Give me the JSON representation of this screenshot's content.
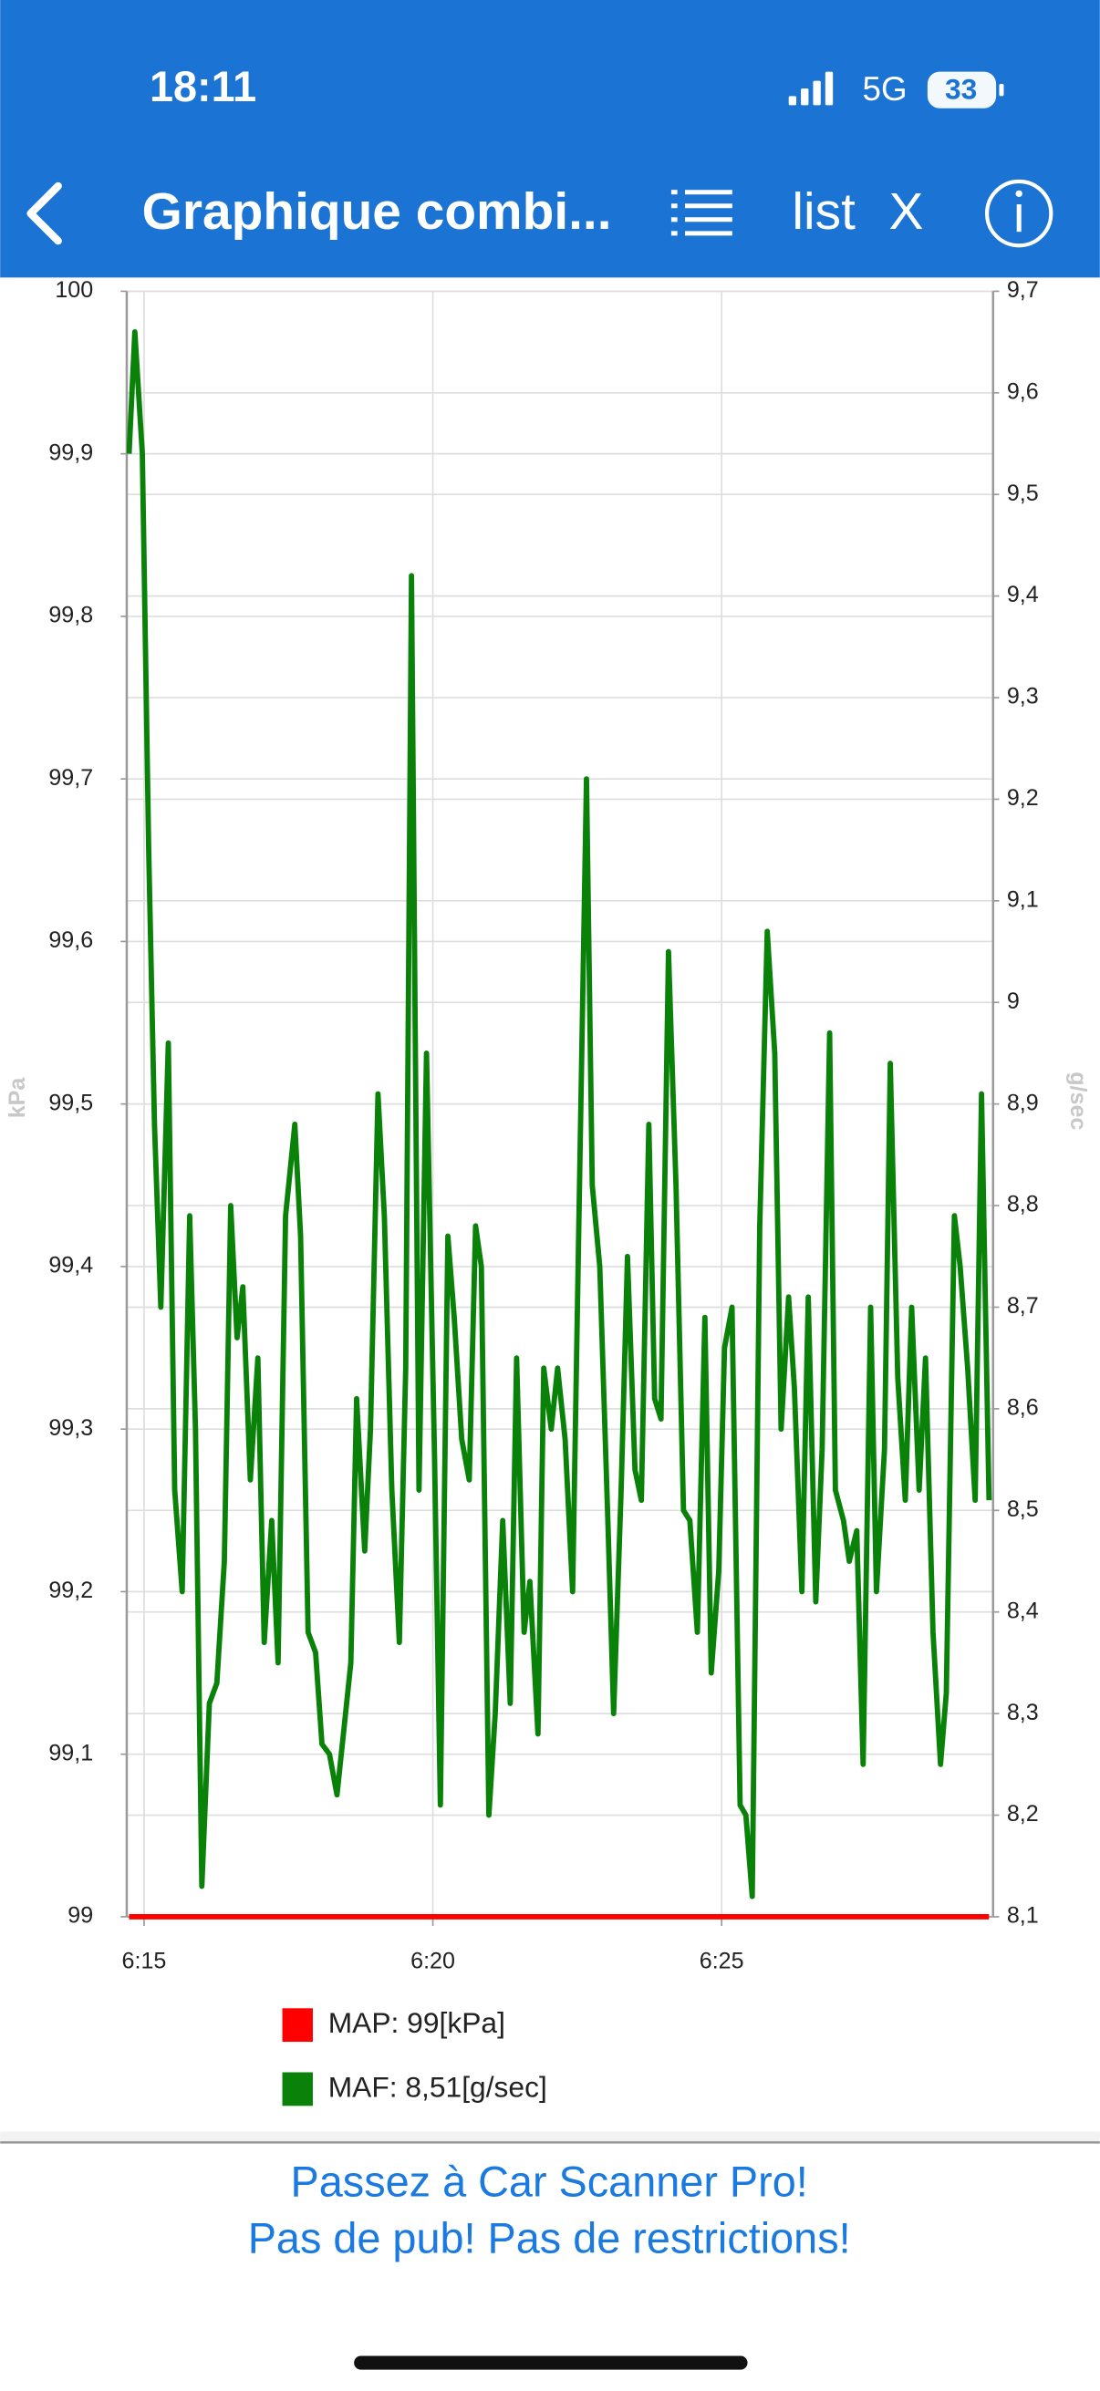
{
  "status_bar": {
    "time": "18:11",
    "network": "5G",
    "battery": "33"
  },
  "nav": {
    "title": "Graphique combi...",
    "list": "list",
    "close": "X"
  },
  "chart_data": {
    "type": "line",
    "ylabel": "kPa",
    "y2label": "g/sec",
    "grid": true,
    "xlim": [
      374.7,
      389.7
    ],
    "xticks": [
      {
        "value": 375,
        "label": "6:15"
      },
      {
        "value": 380,
        "label": "6:20"
      },
      {
        "value": 385,
        "label": "6:25"
      }
    ],
    "ylim": [
      99,
      100
    ],
    "yticks": [
      99,
      {
        "value": 99.1,
        "label": "99,1"
      },
      {
        "value": 99.2,
        "label": "99,2"
      },
      {
        "value": 99.3,
        "label": "99,3"
      },
      {
        "value": 99.4,
        "label": "99,4"
      },
      {
        "value": 99.5,
        "label": "99,5"
      },
      {
        "value": 99.6,
        "label": "99,6"
      },
      {
        "value": 99.7,
        "label": "99,7"
      },
      {
        "value": 99.8,
        "label": "99,8"
      },
      {
        "value": 99.9,
        "label": "99,9"
      },
      100
    ],
    "y2lim": [
      8.1,
      9.7
    ],
    "y2ticks": [
      {
        "value": 8.1,
        "label": "8,1"
      },
      {
        "value": 8.2,
        "label": "8,2"
      },
      {
        "value": 8.3,
        "label": "8,3"
      },
      {
        "value": 8.4,
        "label": "8,4"
      },
      {
        "value": 8.5,
        "label": "8,5"
      },
      {
        "value": 8.6,
        "label": "8,6"
      },
      {
        "value": 8.7,
        "label": "8,7"
      },
      {
        "value": 8.8,
        "label": "8,8"
      },
      {
        "value": 8.9,
        "label": "8,9"
      },
      9,
      {
        "value": 9.1,
        "label": "9,1"
      },
      {
        "value": 9.2,
        "label": "9,2"
      },
      {
        "value": 9.3,
        "label": "9,3"
      },
      {
        "value": 9.4,
        "label": "9,4"
      },
      {
        "value": 9.5,
        "label": "9,5"
      },
      {
        "value": 9.6,
        "label": "9,6"
      },
      {
        "value": 9.7,
        "label": "9,7"
      }
    ],
    "x": [
      374.74,
      374.84,
      374.97,
      375.08,
      375.18,
      375.29,
      375.42,
      375.53,
      375.66,
      375.79,
      375.89,
      376.0,
      376.13,
      376.26,
      376.39,
      376.5,
      376.61,
      376.71,
      376.84,
      376.97,
      377.08,
      377.21,
      377.32,
      377.45,
      377.61,
      377.71,
      377.84,
      377.97,
      378.08,
      378.21,
      378.34,
      378.47,
      378.58,
      378.68,
      378.82,
      378.92,
      379.05,
      379.16,
      379.29,
      379.42,
      379.53,
      379.63,
      379.76,
      379.89,
      380.03,
      380.13,
      380.26,
      380.37,
      380.5,
      380.63,
      380.74,
      380.84,
      380.97,
      381.08,
      381.21,
      381.34,
      381.45,
      381.58,
      381.68,
      381.82,
      381.92,
      382.05,
      382.16,
      382.29,
      382.42,
      382.53,
      382.66,
      382.76,
      382.89,
      383.03,
      383.13,
      383.26,
      383.37,
      383.5,
      383.61,
      383.74,
      383.84,
      383.95,
      384.08,
      384.21,
      384.34,
      384.45,
      384.58,
      384.71,
      384.82,
      384.95,
      385.05,
      385.18,
      385.32,
      385.42,
      385.53,
      385.66,
      385.79,
      385.92,
      386.03,
      386.16,
      386.26,
      386.39,
      386.5,
      386.63,
      386.74,
      386.87,
      386.97,
      387.11,
      387.21,
      387.34,
      387.45,
      387.58,
      387.68,
      387.82,
      387.92,
      388.05,
      388.18,
      388.29,
      388.42,
      388.53,
      388.66,
      388.79,
      388.89,
      389.03,
      389.13,
      389.26,
      389.39,
      389.5,
      389.63
    ],
    "series": [
      {
        "name": "MAP: 99[kPa]",
        "color": "#ff0000",
        "axis": "y",
        "values": [
          99,
          99,
          99,
          99,
          99,
          99,
          99,
          99,
          99,
          99,
          99,
          99,
          99,
          99,
          99,
          99,
          99,
          99,
          99,
          99,
          99,
          99,
          99,
          99,
          99,
          99,
          99,
          99,
          99,
          99,
          99,
          99,
          99,
          99,
          99,
          99,
          99,
          99,
          99,
          99,
          99,
          99,
          99,
          99,
          99,
          99,
          99,
          99,
          99,
          99,
          99,
          99,
          99,
          99,
          99,
          99,
          99,
          99,
          99,
          99,
          99,
          99,
          99,
          99,
          99,
          99,
          99,
          99,
          99,
          99,
          99,
          99,
          99,
          99,
          99,
          99,
          99,
          99,
          99,
          99,
          99,
          99,
          99,
          99,
          99,
          99,
          99,
          99,
          99,
          99,
          99,
          99,
          99,
          99,
          99,
          99,
          99,
          99,
          99,
          99,
          99,
          99,
          99,
          99,
          99,
          99,
          99,
          99,
          99,
          99,
          99,
          99,
          99,
          99,
          99,
          99,
          99,
          99,
          99,
          99,
          99,
          99,
          99,
          99,
          99
        ]
      },
      {
        "name": "MAF: 8,51[g/sec]",
        "color": "#0a820a",
        "axis": "y2",
        "values": [
          9.54,
          9.66,
          9.54,
          9.15,
          8.88,
          8.7,
          8.96,
          8.52,
          8.42,
          8.79,
          8.58,
          8.13,
          8.31,
          8.33,
          8.45,
          8.8,
          8.67,
          8.72,
          8.53,
          8.65,
          8.37,
          8.49,
          8.35,
          8.79,
          8.88,
          8.77,
          8.38,
          8.36,
          8.27,
          8.26,
          8.22,
          8.29,
          8.35,
          8.61,
          8.46,
          8.58,
          8.91,
          8.79,
          8.52,
          8.37,
          8.64,
          9.42,
          8.52,
          8.95,
          8.55,
          8.21,
          8.77,
          8.69,
          8.57,
          8.53,
          8.78,
          8.74,
          8.2,
          8.3,
          8.49,
          8.31,
          8.65,
          8.38,
          8.43,
          8.28,
          8.64,
          8.58,
          8.64,
          8.57,
          8.42,
          8.79,
          9.22,
          8.82,
          8.74,
          8.49,
          8.3,
          8.52,
          8.75,
          8.54,
          8.51,
          8.88,
          8.61,
          8.59,
          9.05,
          8.82,
          8.5,
          8.49,
          8.38,
          8.69,
          8.34,
          8.44,
          8.66,
          8.7,
          8.21,
          8.2,
          8.12,
          8.78,
          9.07,
          8.95,
          8.58,
          8.71,
          8.62,
          8.42,
          8.71,
          8.41,
          8.56,
          8.97,
          8.52,
          8.49,
          8.45,
          8.48,
          8.25,
          8.7,
          8.42,
          8.56,
          8.94,
          8.63,
          8.51,
          8.7,
          8.52,
          8.65,
          8.38,
          8.25,
          8.32,
          8.79,
          8.74,
          8.64,
          8.51,
          8.91,
          8.51
        ]
      }
    ]
  },
  "banner": {
    "line1": "Passez à Car Scanner Pro!",
    "line2": "Pas de pub! Pas de restrictions!"
  }
}
